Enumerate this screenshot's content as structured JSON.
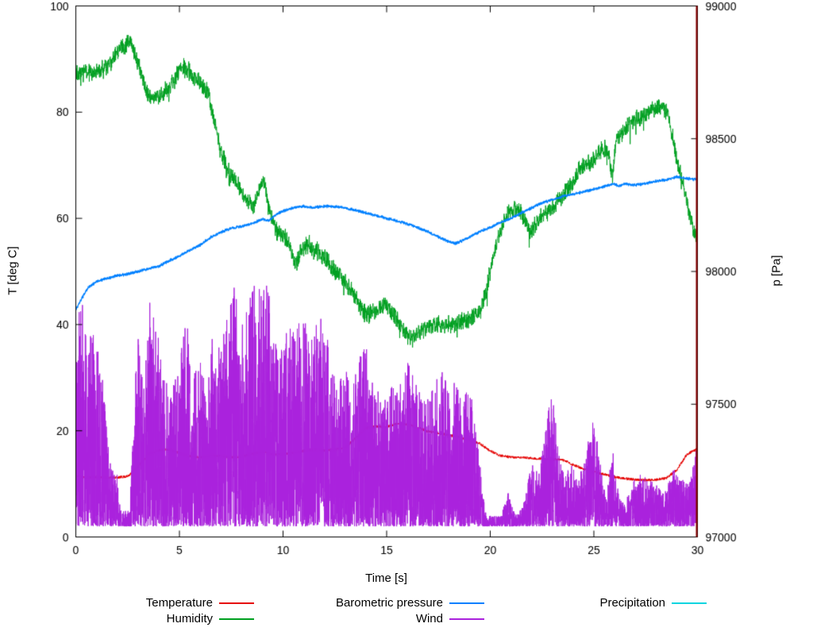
{
  "chart_data": {
    "type": "line",
    "title": "",
    "xlabel": "Time [s]",
    "ylabel_left": "T [deg C]",
    "ylabel_right": "p [Pa]",
    "x_range": [
      0,
      30
    ],
    "y_left_range": [
      0,
      100
    ],
    "y_right_range": [
      97000,
      99000
    ],
    "x_ticks": [
      0,
      5,
      10,
      15,
      20,
      25,
      30
    ],
    "y_left_ticks": [
      0,
      20,
      40,
      60,
      80,
      100
    ],
    "y_right_ticks": [
      97000,
      97500,
      98000,
      98500,
      99000
    ],
    "grid": false,
    "legend_position": "below-plot",
    "legend": [
      {
        "label": "Temperature",
        "color": "#e60000"
      },
      {
        "label": "Barometric pressure",
        "color": "#0080ff"
      },
      {
        "label": "Precipitation",
        "color": "#00d5e0"
      },
      {
        "label": "Humidity",
        "color": "#00a020"
      },
      {
        "label": "Wind",
        "color": "#aa22dd"
      }
    ],
    "marker_line": {
      "x": 30,
      "color": "#8b0000"
    },
    "series": {
      "temperature": {
        "axis": "left",
        "color": "#e60000",
        "noise": 0.25,
        "points": [
          [
            0,
            11.5
          ],
          [
            0.5,
            11.2
          ],
          [
            1,
            11.3
          ],
          [
            1.5,
            11.2
          ],
          [
            2,
            11.2
          ],
          [
            2.5,
            11.4
          ],
          [
            3,
            13.2
          ],
          [
            3.5,
            15.6
          ],
          [
            4,
            16.3
          ],
          [
            4.5,
            16.5
          ],
          [
            5,
            15.8
          ],
          [
            5.5,
            15.2
          ],
          [
            6,
            15.0
          ],
          [
            6.5,
            15.3
          ],
          [
            7,
            15.2
          ],
          [
            7.5,
            15.0
          ],
          [
            8,
            15.2
          ],
          [
            8.5,
            15.6
          ],
          [
            9,
            16.0
          ],
          [
            9.5,
            15.5
          ],
          [
            10,
            15.6
          ],
          [
            10.5,
            15.8
          ],
          [
            11,
            16.2
          ],
          [
            11.5,
            16.4
          ],
          [
            12,
            16.3
          ],
          [
            12.5,
            16.5
          ],
          [
            13,
            16.8
          ],
          [
            13.5,
            18.6
          ],
          [
            14,
            20.5
          ],
          [
            14.5,
            20.8
          ],
          [
            15,
            20.7
          ],
          [
            15.5,
            21.4
          ],
          [
            16,
            21.2
          ],
          [
            16.5,
            20.6
          ],
          [
            17,
            19.9
          ],
          [
            17.5,
            19.5
          ],
          [
            18,
            19.2
          ],
          [
            18.5,
            18.8
          ],
          [
            19,
            18.3
          ],
          [
            19.5,
            17.6
          ],
          [
            20,
            16.2
          ],
          [
            20.5,
            15.3
          ],
          [
            21,
            15.0
          ],
          [
            21.5,
            15.0
          ],
          [
            22,
            14.8
          ],
          [
            22.5,
            14.7
          ],
          [
            23,
            14.6
          ],
          [
            23.5,
            14.5
          ],
          [
            24,
            13.6
          ],
          [
            24.5,
            12.8
          ],
          [
            25,
            12.2
          ],
          [
            25.5,
            11.8
          ],
          [
            26,
            11.3
          ],
          [
            26.5,
            11.0
          ],
          [
            27,
            10.8
          ],
          [
            27.5,
            10.7
          ],
          [
            28,
            10.8
          ],
          [
            28.5,
            11.1
          ],
          [
            29,
            12.6
          ],
          [
            29.5,
            15.6
          ],
          [
            30,
            16.6
          ]
        ]
      },
      "humidity": {
        "axis": "left",
        "color": "#00a020",
        "noise": 2.0,
        "points": [
          [
            0,
            88
          ],
          [
            0.4,
            87.6
          ],
          [
            0.8,
            87.4
          ],
          [
            1.2,
            87.8
          ],
          [
            1.6,
            89
          ],
          [
            2,
            91.6
          ],
          [
            2.3,
            92.4
          ],
          [
            2.6,
            93.2
          ],
          [
            2.9,
            90.5
          ],
          [
            3.2,
            86.5
          ],
          [
            3.5,
            83
          ],
          [
            3.8,
            82.6
          ],
          [
            4.2,
            83.4
          ],
          [
            4.6,
            85
          ],
          [
            5,
            88
          ],
          [
            5.2,
            88.6
          ],
          [
            5.5,
            87.4
          ],
          [
            5.8,
            86
          ],
          [
            6.1,
            85
          ],
          [
            6.4,
            83.5
          ],
          [
            6.7,
            78
          ],
          [
            7,
            72.5
          ],
          [
            7.3,
            69.5
          ],
          [
            7.6,
            67.5
          ],
          [
            8,
            65
          ],
          [
            8.3,
            63.5
          ],
          [
            8.6,
            62
          ],
          [
            8.9,
            66
          ],
          [
            9.1,
            67
          ],
          [
            9.4,
            60.5
          ],
          [
            9.7,
            57.5
          ],
          [
            10,
            57
          ],
          [
            10.3,
            55
          ],
          [
            10.6,
            51.5
          ],
          [
            10.9,
            54
          ],
          [
            11.2,
            55.2
          ],
          [
            11.5,
            54.2
          ],
          [
            12,
            52.6
          ],
          [
            12.5,
            50.2
          ],
          [
            13,
            48
          ],
          [
            13.5,
            45.5
          ],
          [
            13.8,
            43
          ],
          [
            14.1,
            41.6
          ],
          [
            14.4,
            42.6
          ],
          [
            14.7,
            43.2
          ],
          [
            15,
            43.6
          ],
          [
            15.3,
            42
          ],
          [
            15.6,
            40.5
          ],
          [
            15.9,
            38.5
          ],
          [
            16.2,
            37
          ],
          [
            16.5,
            38.6
          ],
          [
            17,
            39.6
          ],
          [
            17.5,
            40
          ],
          [
            18,
            40
          ],
          [
            18.5,
            40.5
          ],
          [
            19,
            41
          ],
          [
            19.5,
            42.5
          ],
          [
            19.8,
            46
          ],
          [
            20.1,
            52
          ],
          [
            20.4,
            57
          ],
          [
            20.7,
            60
          ],
          [
            21,
            61.5
          ],
          [
            21.3,
            62
          ],
          [
            21.6,
            60
          ],
          [
            21.9,
            57.6
          ],
          [
            22.2,
            59
          ],
          [
            22.5,
            60.5
          ],
          [
            23,
            62
          ],
          [
            23.5,
            64.5
          ],
          [
            24,
            67
          ],
          [
            24.3,
            69.4
          ],
          [
            24.6,
            70
          ],
          [
            25,
            71
          ],
          [
            25.3,
            72.5
          ],
          [
            25.6,
            73.5
          ],
          [
            25.9,
            68
          ],
          [
            26.1,
            75
          ],
          [
            26.4,
            76.5
          ],
          [
            26.8,
            78
          ],
          [
            27.2,
            79
          ],
          [
            27.6,
            80
          ],
          [
            28,
            80.5
          ],
          [
            28.3,
            81.2
          ],
          [
            28.6,
            79.6
          ],
          [
            28.9,
            73
          ],
          [
            29.2,
            68
          ],
          [
            29.5,
            63
          ],
          [
            29.8,
            58
          ],
          [
            30,
            56
          ]
        ]
      },
      "pressure": {
        "axis": "right",
        "color": "#0080ff",
        "noise": 6,
        "points": [
          [
            0,
            97855
          ],
          [
            0.3,
            97900
          ],
          [
            0.6,
            97940
          ],
          [
            1,
            97962
          ],
          [
            1.5,
            97974
          ],
          [
            2,
            97984
          ],
          [
            2.5,
            97990
          ],
          [
            3,
            98000
          ],
          [
            3.5,
            98010
          ],
          [
            4,
            98020
          ],
          [
            4.5,
            98040
          ],
          [
            5,
            98058
          ],
          [
            5.5,
            98080
          ],
          [
            6,
            98100
          ],
          [
            6.5,
            98128
          ],
          [
            7,
            98148
          ],
          [
            7.5,
            98163
          ],
          [
            8,
            98170
          ],
          [
            8.5,
            98180
          ],
          [
            9,
            98198
          ],
          [
            9.3,
            98190
          ],
          [
            9.6,
            98210
          ],
          [
            10,
            98228
          ],
          [
            10.5,
            98240
          ],
          [
            11,
            98245
          ],
          [
            11.5,
            98240
          ],
          [
            12,
            98246
          ],
          [
            12.5,
            98245
          ],
          [
            13,
            98240
          ],
          [
            13.5,
            98230
          ],
          [
            14,
            98220
          ],
          [
            14.5,
            98210
          ],
          [
            15,
            98200
          ],
          [
            15.5,
            98190
          ],
          [
            16,
            98180
          ],
          [
            16.5,
            98165
          ],
          [
            17,
            98150
          ],
          [
            17.5,
            98130
          ],
          [
            18,
            98112
          ],
          [
            18.3,
            98105
          ],
          [
            18.6,
            98115
          ],
          [
            19,
            98130
          ],
          [
            19.5,
            98150
          ],
          [
            20,
            98166
          ],
          [
            20.5,
            98185
          ],
          [
            21,
            98200
          ],
          [
            21.5,
            98220
          ],
          [
            22,
            98240
          ],
          [
            22.5,
            98258
          ],
          [
            23,
            98270
          ],
          [
            23.5,
            98283
          ],
          [
            24,
            98290
          ],
          [
            24.5,
            98300
          ],
          [
            25,
            98310
          ],
          [
            25.5,
            98320
          ],
          [
            26,
            98330
          ],
          [
            26.2,
            98321
          ],
          [
            26.5,
            98330
          ],
          [
            27,
            98326
          ],
          [
            27.5,
            98331
          ],
          [
            28,
            98340
          ],
          [
            28.5,
            98345
          ],
          [
            29,
            98356
          ],
          [
            29.5,
            98350
          ],
          [
            30,
            98346
          ]
        ]
      },
      "wind": {
        "axis": "left",
        "color": "#aa22dd",
        "baseline": 2,
        "envelope": [
          [
            0,
            32
          ],
          [
            0.2,
            48
          ],
          [
            0.5,
            38
          ],
          [
            0.9,
            40
          ],
          [
            1.3,
            30
          ],
          [
            1.6,
            16
          ],
          [
            1.75,
            13
          ],
          [
            2,
            12
          ],
          [
            2.15,
            5
          ],
          [
            2.6,
            5
          ],
          [
            2.8,
            25
          ],
          [
            3,
            38
          ],
          [
            3.3,
            30
          ],
          [
            3.6,
            46
          ],
          [
            4,
            38
          ],
          [
            4.3,
            30
          ],
          [
            4.6,
            28
          ],
          [
            5,
            32
          ],
          [
            5.3,
            45
          ],
          [
            5.6,
            30
          ],
          [
            6,
            34
          ],
          [
            6.3,
            28
          ],
          [
            6.6,
            38
          ],
          [
            7,
            36
          ],
          [
            7.3,
            42
          ],
          [
            7.6,
            48
          ],
          [
            8,
            40
          ],
          [
            8.3,
            44
          ],
          [
            8.6,
            48
          ],
          [
            9,
            46
          ],
          [
            9.3,
            48
          ],
          [
            9.6,
            38
          ],
          [
            10,
            36
          ],
          [
            10.3,
            42
          ],
          [
            10.6,
            38
          ],
          [
            11,
            44
          ],
          [
            11.3,
            36
          ],
          [
            11.6,
            40
          ],
          [
            12,
            42
          ],
          [
            12.3,
            34
          ],
          [
            12.6,
            30
          ],
          [
            13,
            32
          ],
          [
            13.3,
            28
          ],
          [
            13.6,
            34
          ],
          [
            14,
            36
          ],
          [
            14.3,
            30
          ],
          [
            14.6,
            28
          ],
          [
            15,
            26
          ],
          [
            15.3,
            30
          ],
          [
            15.6,
            28
          ],
          [
            16,
            34
          ],
          [
            16.3,
            30
          ],
          [
            16.6,
            28
          ],
          [
            17,
            26
          ],
          [
            17.3,
            30
          ],
          [
            17.6,
            32
          ],
          [
            18,
            28
          ],
          [
            18.3,
            30
          ],
          [
            18.6,
            26
          ],
          [
            19,
            28
          ],
          [
            19.3,
            22
          ],
          [
            19.6,
            10
          ],
          [
            19.8,
            4
          ],
          [
            20.5,
            4
          ],
          [
            20.9,
            9
          ],
          [
            21.2,
            4
          ],
          [
            21.6,
            6
          ],
          [
            22,
            14
          ],
          [
            22.3,
            12
          ],
          [
            22.6,
            18
          ],
          [
            23,
            30
          ],
          [
            23.3,
            16
          ],
          [
            23.6,
            12
          ],
          [
            24,
            14
          ],
          [
            24.3,
            12
          ],
          [
            24.6,
            16
          ],
          [
            25,
            23
          ],
          [
            25.3,
            14
          ],
          [
            25.6,
            7
          ],
          [
            25.9,
            17
          ],
          [
            26.2,
            8
          ],
          [
            26.5,
            6
          ],
          [
            26.8,
            10
          ],
          [
            27.2,
            12
          ],
          [
            27.6,
            11
          ],
          [
            28,
            10
          ],
          [
            28.4,
            8
          ],
          [
            28.8,
            13
          ],
          [
            29.2,
            11
          ],
          [
            29.6,
            10
          ],
          [
            30,
            18
          ]
        ]
      },
      "precipitation": {
        "axis": "left",
        "color": "#00d5e0",
        "constant": 0
      }
    }
  }
}
